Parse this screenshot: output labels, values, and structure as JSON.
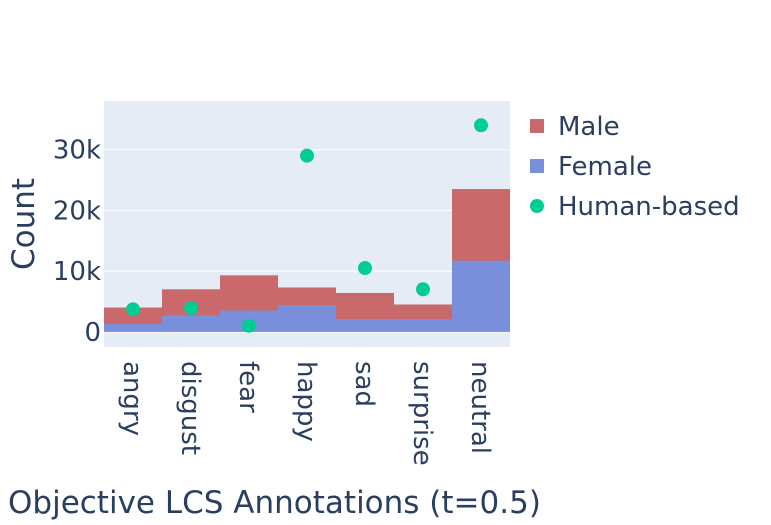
{
  "chart_data": {
    "type": "bar",
    "barmode": "overlay",
    "categories": [
      "angry",
      "disgust",
      "fear",
      "happy",
      "sad",
      "surprise",
      "neutral"
    ],
    "series": [
      {
        "name": "Male",
        "kind": "bar",
        "color": "#c9696b",
        "values": [
          4000,
          7000,
          9300,
          7300,
          6400,
          4500,
          23500
        ]
      },
      {
        "name": "Female",
        "kind": "bar",
        "color": "#7a8fdc",
        "values": [
          1300,
          2700,
          3500,
          4400,
          2100,
          2100,
          11700
        ]
      },
      {
        "name": "Human-based",
        "kind": "scatter",
        "color": "#00cc96",
        "values": [
          3700,
          3900,
          1000,
          29000,
          10500,
          7000,
          34000
        ]
      }
    ],
    "title": "",
    "xlabel": "Objective LCS Annotations (t=0.5)",
    "ylabel": "Count",
    "ylim": [
      -2500,
      38000
    ],
    "yticks": [
      0,
      10000,
      20000,
      30000
    ],
    "ytick_labels": [
      "0",
      "10k",
      "20k",
      "30k"
    ],
    "grid": true,
    "legend_position": "right",
    "plot_background": "#e5ecf6",
    "text_color": "#2a3f5f"
  }
}
